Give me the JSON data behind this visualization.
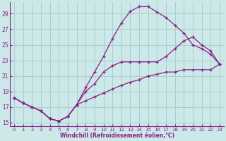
{
  "xlabel": "Windchill (Refroidissement éolien,°C)",
  "bg_color": "#cce8e8",
  "grid_color": "#aacece",
  "line_color": "#882288",
  "xlim": [
    -0.5,
    23.5
  ],
  "ylim": [
    14.5,
    30.5
  ],
  "yticks": [
    15,
    17,
    19,
    21,
    23,
    25,
    27,
    29
  ],
  "xticks": [
    0,
    1,
    2,
    3,
    4,
    5,
    6,
    7,
    8,
    9,
    10,
    11,
    12,
    13,
    14,
    15,
    16,
    17,
    18,
    19,
    20,
    21,
    22,
    23
  ],
  "line1_x": [
    0,
    1,
    2,
    3,
    4,
    5,
    6,
    7,
    8,
    9,
    10,
    11,
    12,
    13,
    14,
    15,
    16,
    17,
    18,
    19,
    20,
    21,
    22,
    23
  ],
  "line1_y": [
    18.2,
    17.5,
    17.0,
    16.5,
    15.5,
    15.2,
    15.8,
    17.3,
    19.5,
    21.5,
    23.5,
    25.8,
    27.8,
    29.3,
    29.9,
    29.9,
    29.2,
    28.5,
    27.5,
    26.5,
    25.0,
    24.5,
    23.8,
    22.5
  ],
  "line2_x": [
    0,
    1,
    2,
    3,
    4,
    5,
    6,
    7,
    8,
    9,
    10,
    11,
    12,
    13,
    14,
    15,
    16,
    17,
    18,
    19,
    20,
    21,
    22,
    23
  ],
  "line2_y": [
    18.2,
    17.5,
    17.0,
    16.5,
    15.5,
    15.2,
    15.8,
    17.3,
    19.0,
    20.0,
    21.5,
    22.3,
    22.8,
    22.8,
    22.8,
    22.8,
    22.8,
    23.5,
    24.5,
    25.5,
    26.0,
    25.0,
    24.2,
    22.5
  ],
  "line3_x": [
    0,
    1,
    2,
    3,
    4,
    5,
    6,
    7,
    8,
    9,
    10,
    11,
    12,
    13,
    14,
    15,
    16,
    17,
    18,
    19,
    20,
    21,
    22,
    23
  ],
  "line3_y": [
    18.2,
    17.5,
    17.0,
    16.5,
    15.5,
    15.2,
    15.8,
    17.3,
    17.8,
    18.3,
    18.8,
    19.3,
    19.8,
    20.2,
    20.5,
    21.0,
    21.2,
    21.5,
    21.5,
    21.8,
    21.8,
    21.8,
    21.8,
    22.5
  ]
}
